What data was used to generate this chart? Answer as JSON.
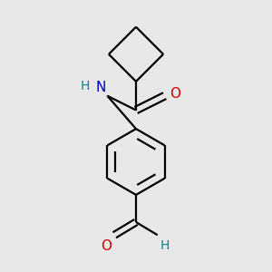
{
  "background_color": "#e8e8e8",
  "bond_color": "#000000",
  "nitrogen_color": "#0000bb",
  "oxygen_color": "#cc0000",
  "hydrogen_color": "#008080",
  "line_width": 1.6,
  "font_size_atom": 11,
  "fig_width": 3.0,
  "fig_height": 3.0,
  "dpi": 100,
  "xlim": [
    0.1,
    0.9
  ],
  "ylim": [
    0.05,
    0.98
  ]
}
